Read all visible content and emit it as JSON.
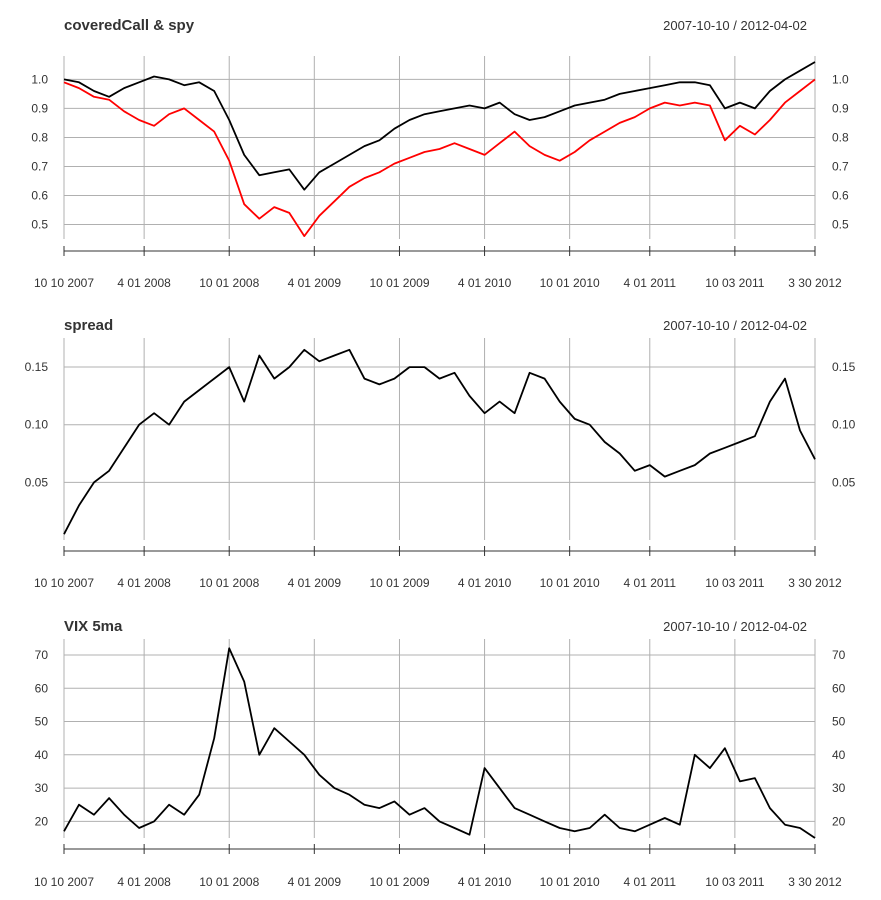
{
  "chart_data": [
    {
      "type": "line",
      "title": "coveredCall & spy",
      "date_range": "2007-10-10 / 2012-04-02",
      "ylim": [
        0.45,
        1.06
      ],
      "yticks": [
        1.0,
        0.9,
        0.8,
        0.7,
        0.6,
        0.5
      ],
      "ytick_labels": [
        "1.0",
        "0.9",
        "0.8",
        "0.7",
        "0.6",
        "0.5"
      ],
      "x_tick_labels": [
        "10 10 2007",
        "4 01 2008",
        "10 01 2008",
        "4 01 2009",
        "10 01 2009",
        "4 01 2010",
        "10 01 2010",
        "4 01 2011",
        "10 03 2011",
        "3 30 2012"
      ],
      "series": [
        {
          "name": "coveredCall",
          "color": "#000000",
          "x": [
            0,
            0.02,
            0.04,
            0.06,
            0.08,
            0.1,
            0.12,
            0.14,
            0.16,
            0.18,
            0.2,
            0.22,
            0.24,
            0.26,
            0.28,
            0.3,
            0.32,
            0.34,
            0.36,
            0.38,
            0.4,
            0.42,
            0.44,
            0.46,
            0.48,
            0.5,
            0.52,
            0.54,
            0.56,
            0.58,
            0.6,
            0.62,
            0.64,
            0.66,
            0.68,
            0.7,
            0.72,
            0.74,
            0.76,
            0.78,
            0.8,
            0.82,
            0.84,
            0.86,
            0.88,
            0.9,
            0.92,
            0.94,
            0.96,
            0.98,
            1.0
          ],
          "values": [
            1.0,
            0.99,
            0.96,
            0.94,
            0.97,
            0.99,
            1.01,
            1.0,
            0.98,
            0.99,
            0.96,
            0.86,
            0.74,
            0.67,
            0.68,
            0.69,
            0.62,
            0.68,
            0.71,
            0.74,
            0.77,
            0.79,
            0.83,
            0.86,
            0.88,
            0.89,
            0.9,
            0.91,
            0.9,
            0.92,
            0.88,
            0.86,
            0.87,
            0.89,
            0.91,
            0.92,
            0.93,
            0.95,
            0.96,
            0.97,
            0.98,
            0.99,
            0.99,
            0.98,
            0.9,
            0.92,
            0.9,
            0.96,
            1.0,
            1.03,
            1.06
          ]
        },
        {
          "name": "spy",
          "color": "#ff0000",
          "x": [
            0,
            0.02,
            0.04,
            0.06,
            0.08,
            0.1,
            0.12,
            0.14,
            0.16,
            0.18,
            0.2,
            0.22,
            0.24,
            0.26,
            0.28,
            0.3,
            0.32,
            0.34,
            0.36,
            0.38,
            0.4,
            0.42,
            0.44,
            0.46,
            0.48,
            0.5,
            0.52,
            0.54,
            0.56,
            0.58,
            0.6,
            0.62,
            0.64,
            0.66,
            0.68,
            0.7,
            0.72,
            0.74,
            0.76,
            0.78,
            0.8,
            0.82,
            0.84,
            0.86,
            0.88,
            0.9,
            0.92,
            0.94,
            0.96,
            0.98,
            1.0
          ],
          "values": [
            0.99,
            0.97,
            0.94,
            0.93,
            0.89,
            0.86,
            0.84,
            0.88,
            0.9,
            0.86,
            0.82,
            0.72,
            0.57,
            0.52,
            0.56,
            0.54,
            0.46,
            0.53,
            0.58,
            0.63,
            0.66,
            0.68,
            0.71,
            0.73,
            0.75,
            0.76,
            0.78,
            0.76,
            0.74,
            0.78,
            0.82,
            0.77,
            0.74,
            0.72,
            0.75,
            0.79,
            0.82,
            0.85,
            0.87,
            0.9,
            0.92,
            0.91,
            0.92,
            0.91,
            0.79,
            0.84,
            0.81,
            0.86,
            0.92,
            0.96,
            1.0
          ]
        }
      ]
    },
    {
      "type": "line",
      "title": "spread",
      "date_range": "2007-10-10 / 2012-04-02",
      "ylim": [
        0.0,
        0.17
      ],
      "yticks": [
        0.15,
        0.1,
        0.05
      ],
      "ytick_labels": [
        "0.15",
        "0.10",
        "0.05"
      ],
      "x_tick_labels": [
        "10 10 2007",
        "4 01 2008",
        "10 01 2008",
        "4 01 2009",
        "10 01 2009",
        "4 01 2010",
        "10 01 2010",
        "4 01 2011",
        "10 03 2011",
        "3 30 2012"
      ],
      "series": [
        {
          "name": "spread",
          "color": "#000000",
          "x": [
            0,
            0.02,
            0.04,
            0.06,
            0.08,
            0.1,
            0.12,
            0.14,
            0.16,
            0.18,
            0.2,
            0.22,
            0.24,
            0.26,
            0.28,
            0.3,
            0.32,
            0.34,
            0.36,
            0.38,
            0.4,
            0.42,
            0.44,
            0.46,
            0.48,
            0.5,
            0.52,
            0.54,
            0.56,
            0.58,
            0.6,
            0.62,
            0.64,
            0.66,
            0.68,
            0.7,
            0.72,
            0.74,
            0.76,
            0.78,
            0.8,
            0.82,
            0.84,
            0.86,
            0.88,
            0.9,
            0.92,
            0.94,
            0.96,
            0.98,
            1.0
          ],
          "values": [
            0.005,
            0.03,
            0.05,
            0.06,
            0.08,
            0.1,
            0.11,
            0.1,
            0.12,
            0.13,
            0.14,
            0.15,
            0.12,
            0.16,
            0.14,
            0.15,
            0.165,
            0.155,
            0.16,
            0.165,
            0.14,
            0.135,
            0.14,
            0.15,
            0.15,
            0.14,
            0.145,
            0.125,
            0.11,
            0.12,
            0.11,
            0.145,
            0.14,
            0.12,
            0.105,
            0.1,
            0.085,
            0.075,
            0.06,
            0.065,
            0.055,
            0.06,
            0.065,
            0.075,
            0.08,
            0.085,
            0.09,
            0.12,
            0.14,
            0.095,
            0.07
          ]
        }
      ]
    },
    {
      "type": "line",
      "title": "VIX 5ma",
      "date_range": "2007-10-10 / 2012-04-02",
      "ylim": [
        15,
        73
      ],
      "yticks": [
        70,
        60,
        50,
        40,
        30,
        20
      ],
      "ytick_labels": [
        "70",
        "60",
        "50",
        "40",
        "30",
        "20"
      ],
      "x_tick_labels": [
        "10 10 2007",
        "4 01 2008",
        "10 01 2008",
        "4 01 2009",
        "10 01 2009",
        "4 01 2010",
        "10 01 2010",
        "4 01 2011",
        "10 03 2011",
        "3 30 2012"
      ],
      "series": [
        {
          "name": "VIX 5ma",
          "color": "#000000",
          "x": [
            0,
            0.02,
            0.04,
            0.06,
            0.08,
            0.1,
            0.12,
            0.14,
            0.16,
            0.18,
            0.2,
            0.22,
            0.24,
            0.26,
            0.28,
            0.3,
            0.32,
            0.34,
            0.36,
            0.38,
            0.4,
            0.42,
            0.44,
            0.46,
            0.48,
            0.5,
            0.52,
            0.54,
            0.56,
            0.58,
            0.6,
            0.62,
            0.64,
            0.66,
            0.68,
            0.7,
            0.72,
            0.74,
            0.76,
            0.78,
            0.8,
            0.82,
            0.84,
            0.86,
            0.88,
            0.9,
            0.92,
            0.94,
            0.96,
            0.98,
            1.0
          ],
          "values": [
            17,
            25,
            22,
            27,
            22,
            18,
            20,
            25,
            22,
            28,
            45,
            72,
            62,
            40,
            48,
            44,
            40,
            34,
            30,
            28,
            25,
            24,
            26,
            22,
            24,
            20,
            18,
            16,
            36,
            30,
            24,
            22,
            20,
            18,
            17,
            18,
            22,
            18,
            17,
            19,
            21,
            19,
            40,
            36,
            42,
            32,
            33,
            24,
            19,
            18,
            15
          ]
        }
      ]
    }
  ]
}
